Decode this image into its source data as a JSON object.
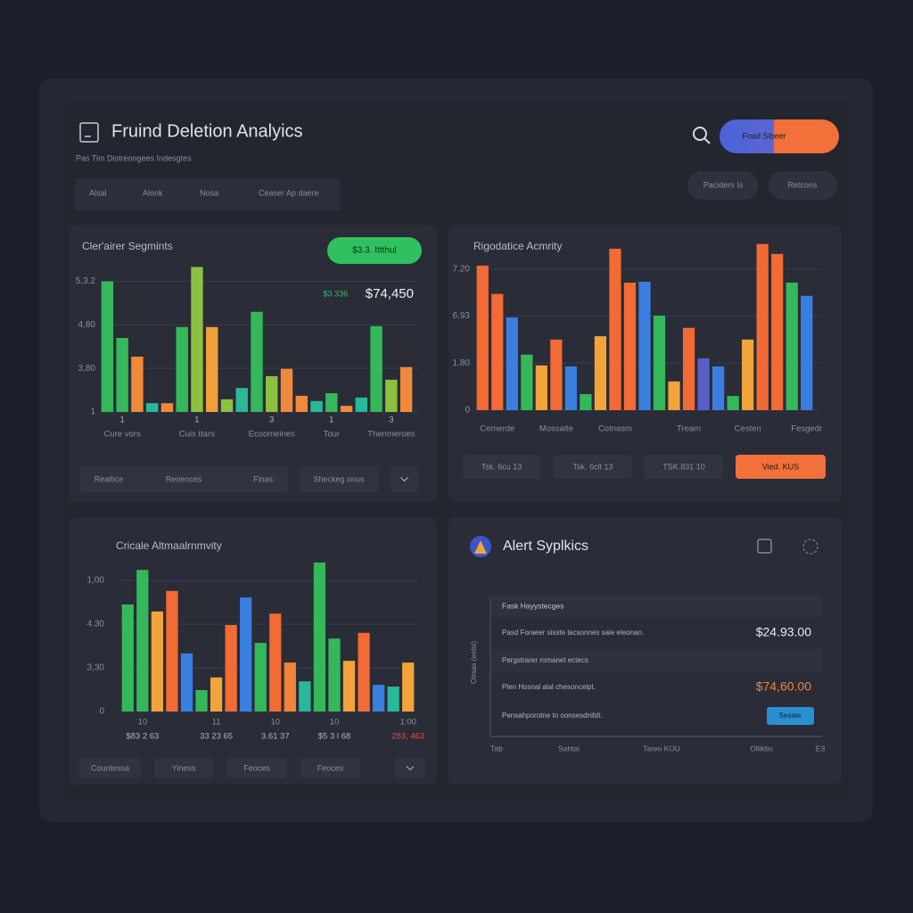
{
  "header": {
    "title": "Fruind Deletion Analyics",
    "subtitle": "Pas Tim Distreongees Indesgtes",
    "tabs": [
      "Alsal",
      "Alonk",
      "Nosa",
      "Ceaser Ap daere"
    ],
    "primary_button": "Foad Sibeer",
    "buttons": [
      "Paciders Is",
      "Retcons"
    ]
  },
  "chart_data": [
    {
      "type": "bar",
      "title": "Cler'airer Segmints",
      "badge": "$3.3. Ittthul",
      "annotations": [
        "$3 336",
        "$74,450"
      ],
      "categories": [
        null,
        "Cure vors",
        null,
        null,
        null,
        null,
        "Cuis ttars",
        null,
        null,
        null,
        null,
        "Ecoomeines",
        null,
        null,
        null,
        "Tour",
        null,
        null,
        null,
        "Thenmeroes",
        null
      ],
      "category_sublabels": [
        null,
        "1",
        null,
        null,
        null,
        null,
        "1",
        null,
        null,
        null,
        null,
        "3",
        null,
        null,
        null,
        "1",
        null,
        null,
        null,
        "3",
        null
      ],
      "values": [
        3.0,
        1.7,
        1.27,
        0.2,
        0.2,
        1.95,
        3.33,
        1.95,
        0.29,
        0.55,
        2.3,
        0.82,
        0.99,
        0.37,
        0.25,
        0.43,
        0.14,
        0.33,
        1.97,
        0.74,
        1.03
      ],
      "colors": [
        "#35b85a",
        "#35b85a",
        "#f08a3a",
        "#2ab89a",
        "#f08a3a",
        "#35b85a",
        "#8dc040",
        "#f0a03a",
        "#8dc040",
        "#2ab89a",
        "#35b85a",
        "#8dc040",
        "#f08a3a",
        "#f08a3a",
        "#2ab89a",
        "#35b85a",
        "#f08a3a",
        "#2ab89a",
        "#35b85a",
        "#8dc040",
        "#f08a3a"
      ],
      "ylim": [
        0,
        3.4
      ],
      "yticks": [
        {
          "value": 0,
          "label": "1"
        },
        {
          "value": 1,
          "label": "3,80"
        },
        {
          "value": 2,
          "label": "4,80"
        },
        {
          "value": 3,
          "label": "5,3.2"
        }
      ],
      "grid": true
    },
    {
      "type": "bar",
      "title": "Rigodatice Acmrity",
      "categories": [
        null,
        "Cemerde",
        null,
        null,
        null,
        "Mossalte",
        null,
        null,
        null,
        "Cotnasm",
        null,
        null,
        null,
        null,
        "Tream",
        null,
        null,
        null,
        "Cesten",
        null,
        null,
        null,
        "Fesgedr"
      ],
      "values": [
        3.07,
        2.47,
        1.97,
        1.18,
        0.95,
        1.5,
        0.93,
        0.34,
        1.57,
        3.43,
        2.71,
        2.73,
        2.01,
        0.61,
        1.75,
        1.1,
        0.93,
        0.3,
        1.5,
        3.53,
        3.32,
        2.71,
        2.43
      ],
      "colors": [
        "#f26a34",
        "#f26a34",
        "#3a7fe0",
        "#35b85a",
        "#f2a43a",
        "#f26a34",
        "#3a7fe0",
        "#35b85a",
        "#f2a43a",
        "#f26a34",
        "#f26a34",
        "#3a7fe0",
        "#35b85a",
        "#f2a43a",
        "#f26a34",
        "#5a5fc8",
        "#3a7fe0",
        "#35b85a",
        "#f2a43a",
        "#f26a34",
        "#f26a34",
        "#35b85a",
        "#3a7fe0"
      ],
      "ylim": [
        0,
        3.6
      ],
      "yticks": [
        0,
        {
          "value": 1,
          "label": "1.80"
        },
        {
          "value": 2,
          "label": "6.93"
        },
        {
          "value": 3,
          "label": "7.20"
        }
      ],
      "grid": true
    },
    {
      "type": "bar",
      "title": "Cricale Altmaalrnmvity",
      "categories": [
        null,
        "10",
        null,
        null,
        null,
        null,
        "11",
        null,
        null,
        null,
        "10",
        null,
        null,
        null,
        "10",
        null,
        null,
        null,
        null,
        "1:00"
      ],
      "category_sublabels": [
        null,
        "$83 2 63",
        null,
        null,
        null,
        null,
        "33 23 65",
        null,
        null,
        null,
        "3.61 37",
        null,
        null,
        null,
        "$5 3 l 68",
        null,
        null,
        null,
        null,
        "283, 463"
      ],
      "values": [
        2.45,
        3.24,
        2.29,
        2.76,
        1.33,
        0.49,
        0.78,
        1.98,
        2.61,
        1.57,
        2.24,
        1.12,
        0.69,
        3.41,
        1.67,
        1.16,
        1.8,
        0.61,
        0.57,
        1.12
      ],
      "colors": [
        "#35b85a",
        "#35b85a",
        "#f2a43a",
        "#f26a34",
        "#3a7fe0",
        "#35b85a",
        "#f2a43a",
        "#f26a34",
        "#3a7fe0",
        "#35b85a",
        "#f26a34",
        "#f2843a",
        "#2ab89a",
        "#35b85a",
        "#35b85a",
        "#f2a43a",
        "#f26a34",
        "#3a7fe0",
        "#2ab89a",
        "#f2a43a"
      ],
      "ylim": [
        0,
        3.5
      ],
      "yticks": [
        0,
        {
          "value": 1,
          "label": "3,30"
        },
        {
          "value": 2,
          "label": "4.30"
        },
        {
          "value": 3,
          "label": "1,00"
        }
      ],
      "grid": true
    }
  ],
  "chart_controls": [
    [
      "Realtice",
      "Reoences",
      "Finas",
      "Sheckeg onus"
    ],
    [
      "Tsk. 6cu 13",
      "Tsk. 6clt 13",
      "TSK.831 10",
      "Vied. KUS"
    ],
    [
      "Countessa",
      "Yiness",
      "Feoces",
      "Feoces"
    ]
  ],
  "alerts": {
    "title": "Alert Syplkics",
    "header": "Fask Hayystecges",
    "axis_label": "Otrsas (eelst)",
    "rows": [
      {
        "text": "Pasd Foraeer sisste lacsonnes saie eleonan.",
        "value": "$24.93.00"
      },
      {
        "text": "Pergstrarer romanet ectecs"
      },
      {
        "text": "Plen Hosnal alal chesoncelpt.",
        "value": "$74,60.00"
      },
      {
        "text": "Pensahporotne to oonsesdniblt.",
        "action": "Sesate"
      }
    ],
    "x_labels": [
      "Tab",
      "Sahtai",
      "Tareo KOU",
      "Olliktio",
      "E3"
    ]
  }
}
